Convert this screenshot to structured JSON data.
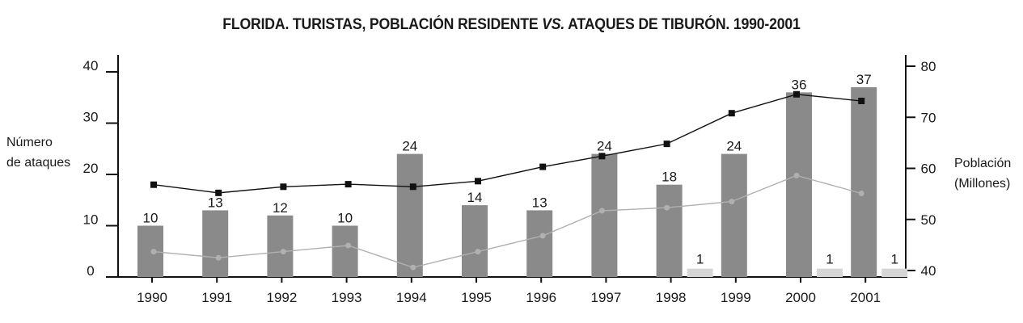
{
  "title": {
    "part1": "FLORIDA. TURISTAS, POBLACIÓN RESIDENTE ",
    "vs": "VS.",
    "part2": " ATAQUES DE TIBURÓN. 1990-2001"
  },
  "axis_labels": {
    "left_line1": "Número",
    "left_line2": "de ataques",
    "right_line1": "Población",
    "right_line2": "(Millones)"
  },
  "colors": {
    "attack_bar": "#8a8a8a",
    "second_bar": "#d6d6d6",
    "tourists_line": "#111111",
    "residents_line": "#b0b0b0",
    "axis": "#111111"
  },
  "chart_data": {
    "type": "bar",
    "categories": [
      "1990",
      "1991",
      "1992",
      "1993",
      "1994",
      "1995",
      "1996",
      "1997",
      "1998",
      "1999",
      "2000",
      "2001"
    ],
    "y_left": {
      "ylim": [
        0,
        40
      ],
      "ticks": [
        0,
        10,
        20,
        30,
        40
      ]
    },
    "y_right": {
      "ylim": [
        40,
        80
      ],
      "ticks": [
        40,
        50,
        60,
        70,
        80
      ]
    },
    "bars": [
      {
        "values": [
          10,
          13,
          12,
          10,
          24,
          14,
          13,
          24,
          18,
          24,
          36,
          37
        ],
        "labels": [
          "10",
          "13",
          "12",
          "10",
          "24",
          "14",
          "13",
          "24",
          "18",
          "24",
          "36",
          "37"
        ],
        "color": "#8a8a8a",
        "axis": "left"
      },
      {
        "values": [
          null,
          null,
          null,
          null,
          null,
          null,
          null,
          null,
          1,
          null,
          1,
          1
        ],
        "labels": [
          "",
          "",
          "",
          "",
          "",
          "",
          "",
          "",
          "1",
          "",
          "1",
          "1"
        ],
        "color": "#d6d6d6",
        "axis": "left"
      }
    ],
    "lines": [
      {
        "values": [
          56.8,
          55.2,
          56.4,
          56.9,
          56.4,
          57.5,
          60.3,
          62.4,
          64.8,
          70.8,
          74.5,
          73.2
        ],
        "marker": "square",
        "color": "#111111",
        "axis": "right"
      },
      {
        "values": [
          43.7,
          42.5,
          43.7,
          44.9,
          40.6,
          43.7,
          46.8,
          51.7,
          52.3,
          53.5,
          58.6,
          55.1
        ],
        "marker": "circle",
        "color": "#b0b0b0",
        "axis": "right"
      }
    ]
  }
}
